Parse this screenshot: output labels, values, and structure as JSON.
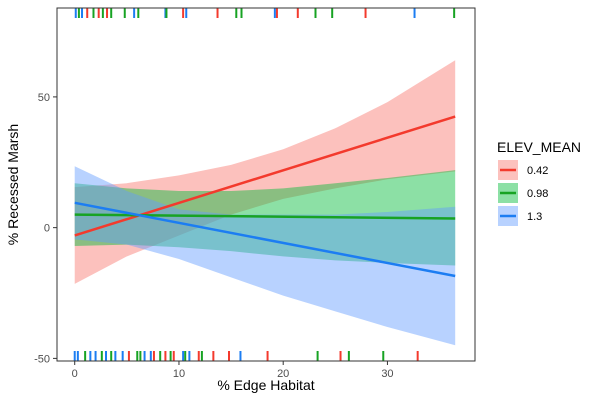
{
  "chart_data": {
    "type": "line",
    "title": "",
    "xlabel": "% Edge Habitat",
    "ylabel": "% Recessed Marsh",
    "xlim": [
      -1.7,
      38.4
    ],
    "ylim": [
      -51,
      84
    ],
    "xticks": [
      0,
      10,
      20,
      30
    ],
    "yticks": [
      -50,
      0,
      50
    ],
    "grid": false,
    "legend": {
      "title": "ELEV_MEAN",
      "placement": "right"
    },
    "series": [
      {
        "name": "0.42",
        "color": "#F8766D",
        "line_color": "#F33A2D",
        "x": [
          0,
          36.5
        ],
        "y": [
          -3,
          42.5
        ],
        "ci_x": [
          0,
          5,
          10,
          15,
          20,
          25,
          30,
          36.5
        ],
        "ci_lower": [
          -21.5,
          -11,
          -3,
          5,
          11,
          15,
          18.5,
          21.5
        ],
        "ci_upper": [
          15.5,
          17,
          20,
          24,
          30,
          38,
          48,
          64
        ]
      },
      {
        "name": "0.98",
        "color": "#00BA38",
        "line_color": "#17A323",
        "x": [
          0,
          36.5
        ],
        "y": [
          5,
          3.5
        ],
        "ci_x": [
          0,
          5,
          10,
          15,
          20,
          25,
          30,
          36.5
        ],
        "ci_lower": [
          -7,
          -6.5,
          -7.5,
          -9,
          -11,
          -12.5,
          -13.5,
          -14.5
        ],
        "ci_upper": [
          17,
          15,
          14,
          14,
          15,
          17,
          19,
          22
        ]
      },
      {
        "name": "1.3",
        "color": "#619CFF",
        "line_color": "#1C7DF2",
        "x": [
          0,
          36.5
        ],
        "y": [
          9.5,
          -18.5
        ],
        "ci_x": [
          0,
          5,
          10,
          15,
          20,
          25,
          30,
          36.5
        ],
        "ci_lower": [
          -4.5,
          -6.5,
          -12,
          -19,
          -26,
          -32,
          -38,
          -45
        ],
        "ci_upper": [
          23.5,
          14,
          7,
          5,
          5,
          5,
          6,
          8
        ]
      }
    ],
    "rug_top": [
      {
        "x": 0.1,
        "series": "1.3"
      },
      {
        "x": 0.4,
        "series": "0.98"
      },
      {
        "x": 0.7,
        "series": "1.3"
      },
      {
        "x": 1.2,
        "series": "0.42"
      },
      {
        "x": 1.8,
        "series": "0.98"
      },
      {
        "x": 2.3,
        "series": "0.42"
      },
      {
        "x": 2.7,
        "series": "0.98"
      },
      {
        "x": 3.1,
        "series": "0.42"
      },
      {
        "x": 3.5,
        "series": "0.98"
      },
      {
        "x": 4.8,
        "series": "0.98"
      },
      {
        "x": 5.7,
        "series": "1.3"
      },
      {
        "x": 6.1,
        "series": "0.98"
      },
      {
        "x": 8.7,
        "series": "1.3"
      },
      {
        "x": 8.8,
        "series": "0.98"
      },
      {
        "x": 10.4,
        "series": "0.42"
      },
      {
        "x": 10.7,
        "series": "1.3"
      },
      {
        "x": 13.7,
        "series": "0.42"
      },
      {
        "x": 15.5,
        "series": "0.98"
      },
      {
        "x": 16.0,
        "series": "0.98"
      },
      {
        "x": 19.2,
        "series": "1.3"
      },
      {
        "x": 19.4,
        "series": "0.42"
      },
      {
        "x": 21.4,
        "series": "0.42"
      },
      {
        "x": 23.1,
        "series": "0.98"
      },
      {
        "x": 24.7,
        "series": "0.98"
      },
      {
        "x": 27.9,
        "series": "0.42"
      },
      {
        "x": 32.6,
        "series": "1.3"
      },
      {
        "x": 36.4,
        "series": "0.98"
      }
    ],
    "rug_bottom": [
      {
        "x": 0.0,
        "series": "1.3"
      },
      {
        "x": 0.3,
        "series": "1.3"
      },
      {
        "x": 1.0,
        "series": "0.98"
      },
      {
        "x": 1.5,
        "series": "1.3"
      },
      {
        "x": 2.0,
        "series": "1.3"
      },
      {
        "x": 2.6,
        "series": "0.98"
      },
      {
        "x": 3.0,
        "series": "1.3"
      },
      {
        "x": 3.5,
        "series": "0.98"
      },
      {
        "x": 3.9,
        "series": "1.3"
      },
      {
        "x": 4.6,
        "series": "1.3"
      },
      {
        "x": 5.2,
        "series": "0.42"
      },
      {
        "x": 6.0,
        "series": "0.98"
      },
      {
        "x": 6.3,
        "series": "0.98"
      },
      {
        "x": 6.7,
        "series": "1.3"
      },
      {
        "x": 7.3,
        "series": "1.3"
      },
      {
        "x": 7.6,
        "series": "0.42"
      },
      {
        "x": 8.2,
        "series": "0.98"
      },
      {
        "x": 8.7,
        "series": "0.42"
      },
      {
        "x": 9.2,
        "series": "0.98"
      },
      {
        "x": 9.5,
        "series": "0.42"
      },
      {
        "x": 10.4,
        "series": "1.3"
      },
      {
        "x": 10.6,
        "series": "0.98"
      },
      {
        "x": 11.0,
        "series": "1.3"
      },
      {
        "x": 11.9,
        "series": "0.42"
      },
      {
        "x": 12.2,
        "series": "0.98"
      },
      {
        "x": 13.3,
        "series": "0.42"
      },
      {
        "x": 14.8,
        "series": "0.42"
      },
      {
        "x": 15.9,
        "series": "1.3"
      },
      {
        "x": 18.5,
        "series": "0.42"
      },
      {
        "x": 23.3,
        "series": "0.98"
      },
      {
        "x": 25.5,
        "series": "0.42"
      },
      {
        "x": 26.3,
        "series": "0.98"
      },
      {
        "x": 29.6,
        "series": "0.98"
      },
      {
        "x": 32.9,
        "series": "0.42"
      }
    ]
  }
}
